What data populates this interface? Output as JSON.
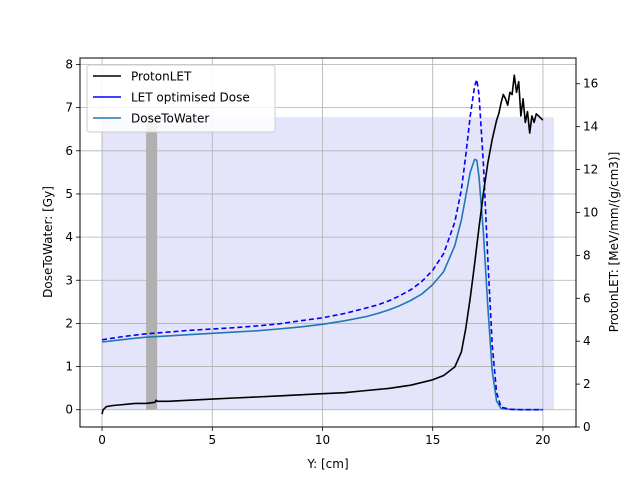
{
  "chart_data": {
    "type": "line",
    "xlabel": "Y: [cm]",
    "ylabel_left": "DoseToWater: [Gy]",
    "ylabel_right": "ProtonLET: [MeV/mm/(g/cm3)]",
    "xlim": [
      -1,
      21.5
    ],
    "ylim_left": [
      -0.4,
      8.15
    ],
    "ylim_right": [
      0,
      17.2
    ],
    "x_ticks": [
      0,
      5,
      10,
      15,
      20
    ],
    "y_ticks_left": [
      0,
      1,
      2,
      3,
      4,
      5,
      6,
      7,
      8
    ],
    "y_ticks_right": [
      0,
      2,
      4,
      6,
      8,
      10,
      12,
      14,
      16
    ],
    "grid": true,
    "legend_position": "top-left",
    "shaded_regions": [
      {
        "axis": "left",
        "x0": 0,
        "x1": 20.5,
        "y0": 0,
        "y1": 6.78,
        "color": "#e4e4fb"
      },
      {
        "axis": "left",
        "x0": 2.0,
        "x1": 2.5,
        "y0": 0,
        "y1": 6.78,
        "color": "#b0b0b0"
      }
    ],
    "series": [
      {
        "name": "ProtonLET",
        "axis": "right",
        "color": "#000000",
        "x": [
          0,
          0.05,
          0.2,
          0.5,
          1,
          1.5,
          2,
          2.4,
          2.45,
          2.5,
          3,
          4,
          5,
          6,
          7,
          8,
          9,
          10,
          11,
          12,
          13,
          14,
          15,
          15.5,
          16,
          16.3,
          16.5,
          16.7,
          16.9,
          17.1,
          17.3,
          17.5,
          17.7,
          17.9,
          18.0,
          18.1,
          18.2,
          18.3,
          18.4,
          18.5,
          18.6,
          18.7,
          18.75,
          18.8,
          18.9,
          19.0,
          19.1,
          19.2,
          19.3,
          19.4,
          19.5,
          19.6,
          19.7,
          19.8,
          19.9,
          20.0
        ],
        "y": [
          0.6,
          0.8,
          0.95,
          1.0,
          1.05,
          1.1,
          1.1,
          1.15,
          1.25,
          1.2,
          1.2,
          1.25,
          1.3,
          1.35,
          1.4,
          1.45,
          1.5,
          1.55,
          1.6,
          1.7,
          1.8,
          1.95,
          2.2,
          2.4,
          2.8,
          3.5,
          4.6,
          6.0,
          7.6,
          9.3,
          10.9,
          12.3,
          13.4,
          14.3,
          14.6,
          15.1,
          15.5,
          15.3,
          15.0,
          15.6,
          15.5,
          16.4,
          16.0,
          15.6,
          16.1,
          14.5,
          15.3,
          14.2,
          14.7,
          13.7,
          14.5,
          14.2,
          14.6,
          14.5,
          14.4,
          14.3
        ]
      },
      {
        "name": "LET optimised Dose",
        "axis": "left",
        "color": "#0000ff",
        "x": [
          0,
          1,
          2,
          3,
          4,
          5,
          6,
          7,
          8,
          9,
          10,
          11,
          12,
          12.5,
          13,
          13.5,
          14,
          14.5,
          15,
          15.5,
          16,
          16.3,
          16.5,
          16.7,
          16.9,
          17.0,
          17.1,
          17.3,
          17.5,
          17.7,
          17.9,
          18.1,
          18.5,
          19,
          20
        ],
        "y": [
          1.62,
          1.7,
          1.76,
          1.8,
          1.84,
          1.87,
          1.9,
          1.94,
          1.99,
          2.06,
          2.13,
          2.23,
          2.36,
          2.43,
          2.52,
          2.64,
          2.78,
          2.97,
          3.23,
          3.62,
          4.35,
          5.1,
          5.9,
          6.8,
          7.5,
          7.65,
          7.3,
          5.7,
          3.5,
          1.5,
          0.4,
          0.06,
          0.01,
          0.0,
          0.0
        ]
      },
      {
        "name": "DoseToWater",
        "axis": "left",
        "color": "#1f77b4",
        "x": [
          0,
          1,
          2,
          3,
          4,
          5,
          6,
          7,
          8,
          9,
          10,
          11,
          12,
          12.5,
          13,
          13.5,
          14,
          14.5,
          15,
          15.5,
          16,
          16.3,
          16.5,
          16.7,
          16.9,
          17.0,
          17.1,
          17.3,
          17.5,
          17.7,
          17.9,
          18.1,
          18.5,
          19,
          20
        ],
        "y": [
          1.57,
          1.63,
          1.68,
          1.71,
          1.74,
          1.77,
          1.8,
          1.83,
          1.87,
          1.92,
          1.98,
          2.06,
          2.16,
          2.23,
          2.31,
          2.41,
          2.53,
          2.68,
          2.9,
          3.2,
          3.8,
          4.4,
          4.95,
          5.5,
          5.8,
          5.78,
          5.4,
          4.1,
          2.4,
          0.9,
          0.2,
          0.03,
          0.01,
          0.0,
          0.0
        ]
      }
    ]
  }
}
